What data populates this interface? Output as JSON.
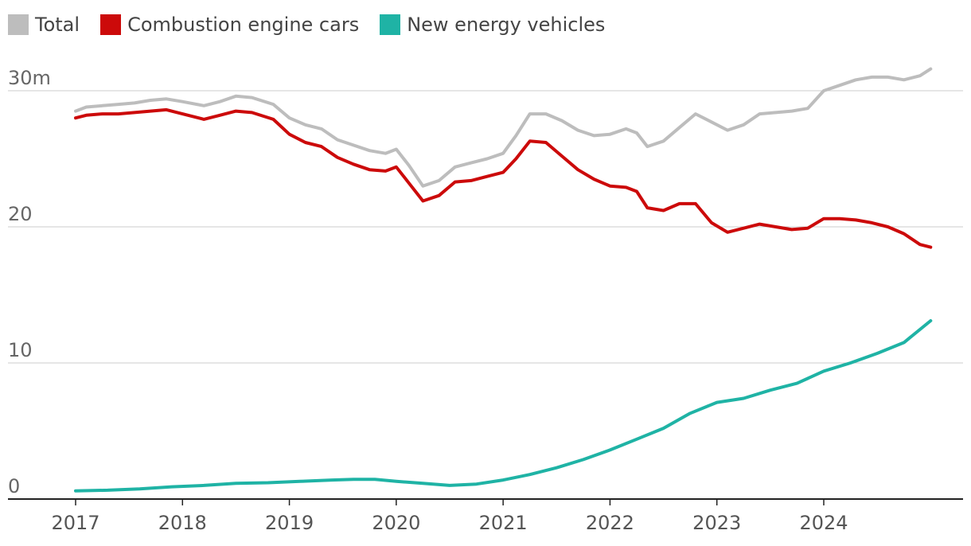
{
  "chart_data": {
    "type": "line",
    "title": "",
    "xlabel": "",
    "ylabel": "",
    "y_unit_suffix": "m",
    "ylim": [
      0,
      30
    ],
    "y_ticks": [
      {
        "value": 0,
        "label": "0"
      },
      {
        "value": 10,
        "label": "10"
      },
      {
        "value": 20,
        "label": "20"
      },
      {
        "value": 30,
        "label": "30m"
      }
    ],
    "x_range": [
      2016.0,
      2025.25
    ],
    "x_ticks": [
      {
        "value": 2017,
        "label": "2017"
      },
      {
        "value": 2018,
        "label": "2018"
      },
      {
        "value": 2019,
        "label": "2019"
      },
      {
        "value": 2020,
        "label": "2020"
      },
      {
        "value": 2021,
        "label": "2021"
      },
      {
        "value": 2022,
        "label": "2022"
      },
      {
        "value": 2023,
        "label": "2023"
      },
      {
        "value": 2024,
        "label": "2024"
      }
    ],
    "legend_position": "top-left",
    "grid": true,
    "series": [
      {
        "name": "Total",
        "color": "#bdbdbd",
        "points": [
          [
            2017.0,
            28.5
          ],
          [
            2017.1,
            28.8
          ],
          [
            2017.25,
            28.9
          ],
          [
            2017.4,
            29.0
          ],
          [
            2017.55,
            29.1
          ],
          [
            2017.7,
            29.3
          ],
          [
            2017.85,
            29.4
          ],
          [
            2018.0,
            29.2
          ],
          [
            2018.2,
            28.9
          ],
          [
            2018.35,
            29.2
          ],
          [
            2018.5,
            29.6
          ],
          [
            2018.65,
            29.5
          ],
          [
            2018.85,
            29.0
          ],
          [
            2019.0,
            28.0
          ],
          [
            2019.15,
            27.5
          ],
          [
            2019.3,
            27.2
          ],
          [
            2019.45,
            26.4
          ],
          [
            2019.6,
            26.0
          ],
          [
            2019.75,
            25.6
          ],
          [
            2019.9,
            25.4
          ],
          [
            2020.0,
            25.7
          ],
          [
            2020.12,
            24.5
          ],
          [
            2020.25,
            23.0
          ],
          [
            2020.4,
            23.4
          ],
          [
            2020.55,
            24.4
          ],
          [
            2020.7,
            24.7
          ],
          [
            2020.85,
            25.0
          ],
          [
            2021.0,
            25.4
          ],
          [
            2021.12,
            26.7
          ],
          [
            2021.25,
            28.3
          ],
          [
            2021.4,
            28.3
          ],
          [
            2021.55,
            27.8
          ],
          [
            2021.7,
            27.1
          ],
          [
            2021.85,
            26.7
          ],
          [
            2022.0,
            26.8
          ],
          [
            2022.15,
            27.2
          ],
          [
            2022.25,
            26.9
          ],
          [
            2022.35,
            25.9
          ],
          [
            2022.5,
            26.3
          ],
          [
            2022.65,
            27.3
          ],
          [
            2022.8,
            28.3
          ],
          [
            2022.95,
            27.7
          ],
          [
            2023.1,
            27.1
          ],
          [
            2023.25,
            27.5
          ],
          [
            2023.4,
            28.3
          ],
          [
            2023.55,
            28.4
          ],
          [
            2023.7,
            28.5
          ],
          [
            2023.85,
            28.7
          ],
          [
            2024.0,
            30.0
          ],
          [
            2024.15,
            30.4
          ],
          [
            2024.3,
            30.8
          ],
          [
            2024.45,
            31.0
          ],
          [
            2024.6,
            31.0
          ],
          [
            2024.75,
            30.8
          ],
          [
            2024.9,
            31.1
          ],
          [
            2025.0,
            31.6
          ]
        ]
      },
      {
        "name": "Combustion engine cars",
        "color": "#cc0a0a",
        "points": [
          [
            2017.0,
            28.0
          ],
          [
            2017.1,
            28.2
          ],
          [
            2017.25,
            28.3
          ],
          [
            2017.4,
            28.3
          ],
          [
            2017.55,
            28.4
          ],
          [
            2017.7,
            28.5
          ],
          [
            2017.85,
            28.6
          ],
          [
            2018.0,
            28.3
          ],
          [
            2018.2,
            27.9
          ],
          [
            2018.35,
            28.2
          ],
          [
            2018.5,
            28.5
          ],
          [
            2018.65,
            28.4
          ],
          [
            2018.85,
            27.9
          ],
          [
            2019.0,
            26.8
          ],
          [
            2019.15,
            26.2
          ],
          [
            2019.3,
            25.9
          ],
          [
            2019.45,
            25.1
          ],
          [
            2019.6,
            24.6
          ],
          [
            2019.75,
            24.2
          ],
          [
            2019.9,
            24.1
          ],
          [
            2020.0,
            24.4
          ],
          [
            2020.12,
            23.2
          ],
          [
            2020.25,
            21.9
          ],
          [
            2020.4,
            22.3
          ],
          [
            2020.55,
            23.3
          ],
          [
            2020.7,
            23.4
          ],
          [
            2020.85,
            23.7
          ],
          [
            2021.0,
            24.0
          ],
          [
            2021.12,
            25.0
          ],
          [
            2021.25,
            26.3
          ],
          [
            2021.4,
            26.2
          ],
          [
            2021.55,
            25.2
          ],
          [
            2021.7,
            24.2
          ],
          [
            2021.85,
            23.5
          ],
          [
            2022.0,
            23.0
          ],
          [
            2022.15,
            22.9
          ],
          [
            2022.25,
            22.6
          ],
          [
            2022.35,
            21.4
          ],
          [
            2022.5,
            21.2
          ],
          [
            2022.65,
            21.7
          ],
          [
            2022.8,
            21.7
          ],
          [
            2022.95,
            20.3
          ],
          [
            2023.1,
            19.6
          ],
          [
            2023.25,
            19.9
          ],
          [
            2023.4,
            20.2
          ],
          [
            2023.55,
            20.0
          ],
          [
            2023.7,
            19.8
          ],
          [
            2023.85,
            19.9
          ],
          [
            2024.0,
            20.6
          ],
          [
            2024.15,
            20.6
          ],
          [
            2024.3,
            20.5
          ],
          [
            2024.45,
            20.3
          ],
          [
            2024.6,
            20.0
          ],
          [
            2024.75,
            19.5
          ],
          [
            2024.9,
            18.7
          ],
          [
            2025.0,
            18.5
          ]
        ]
      },
      {
        "name": "New energy vehicles",
        "color": "#1fb3a5",
        "points": [
          [
            2017.0,
            0.6
          ],
          [
            2017.3,
            0.65
          ],
          [
            2017.6,
            0.75
          ],
          [
            2017.9,
            0.9
          ],
          [
            2018.2,
            1.0
          ],
          [
            2018.5,
            1.15
          ],
          [
            2018.8,
            1.2
          ],
          [
            2019.1,
            1.3
          ],
          [
            2019.4,
            1.4
          ],
          [
            2019.6,
            1.45
          ],
          [
            2019.8,
            1.45
          ],
          [
            2020.0,
            1.3
          ],
          [
            2020.25,
            1.15
          ],
          [
            2020.5,
            1.0
          ],
          [
            2020.75,
            1.1
          ],
          [
            2021.0,
            1.4
          ],
          [
            2021.25,
            1.8
          ],
          [
            2021.5,
            2.3
          ],
          [
            2021.75,
            2.9
          ],
          [
            2022.0,
            3.6
          ],
          [
            2022.25,
            4.4
          ],
          [
            2022.5,
            5.2
          ],
          [
            2022.75,
            6.3
          ],
          [
            2023.0,
            7.1
          ],
          [
            2023.25,
            7.4
          ],
          [
            2023.5,
            8.0
          ],
          [
            2023.75,
            8.5
          ],
          [
            2024.0,
            9.4
          ],
          [
            2024.25,
            10.0
          ],
          [
            2024.5,
            10.7
          ],
          [
            2024.75,
            11.5
          ],
          [
            2025.0,
            13.1
          ]
        ]
      }
    ]
  }
}
